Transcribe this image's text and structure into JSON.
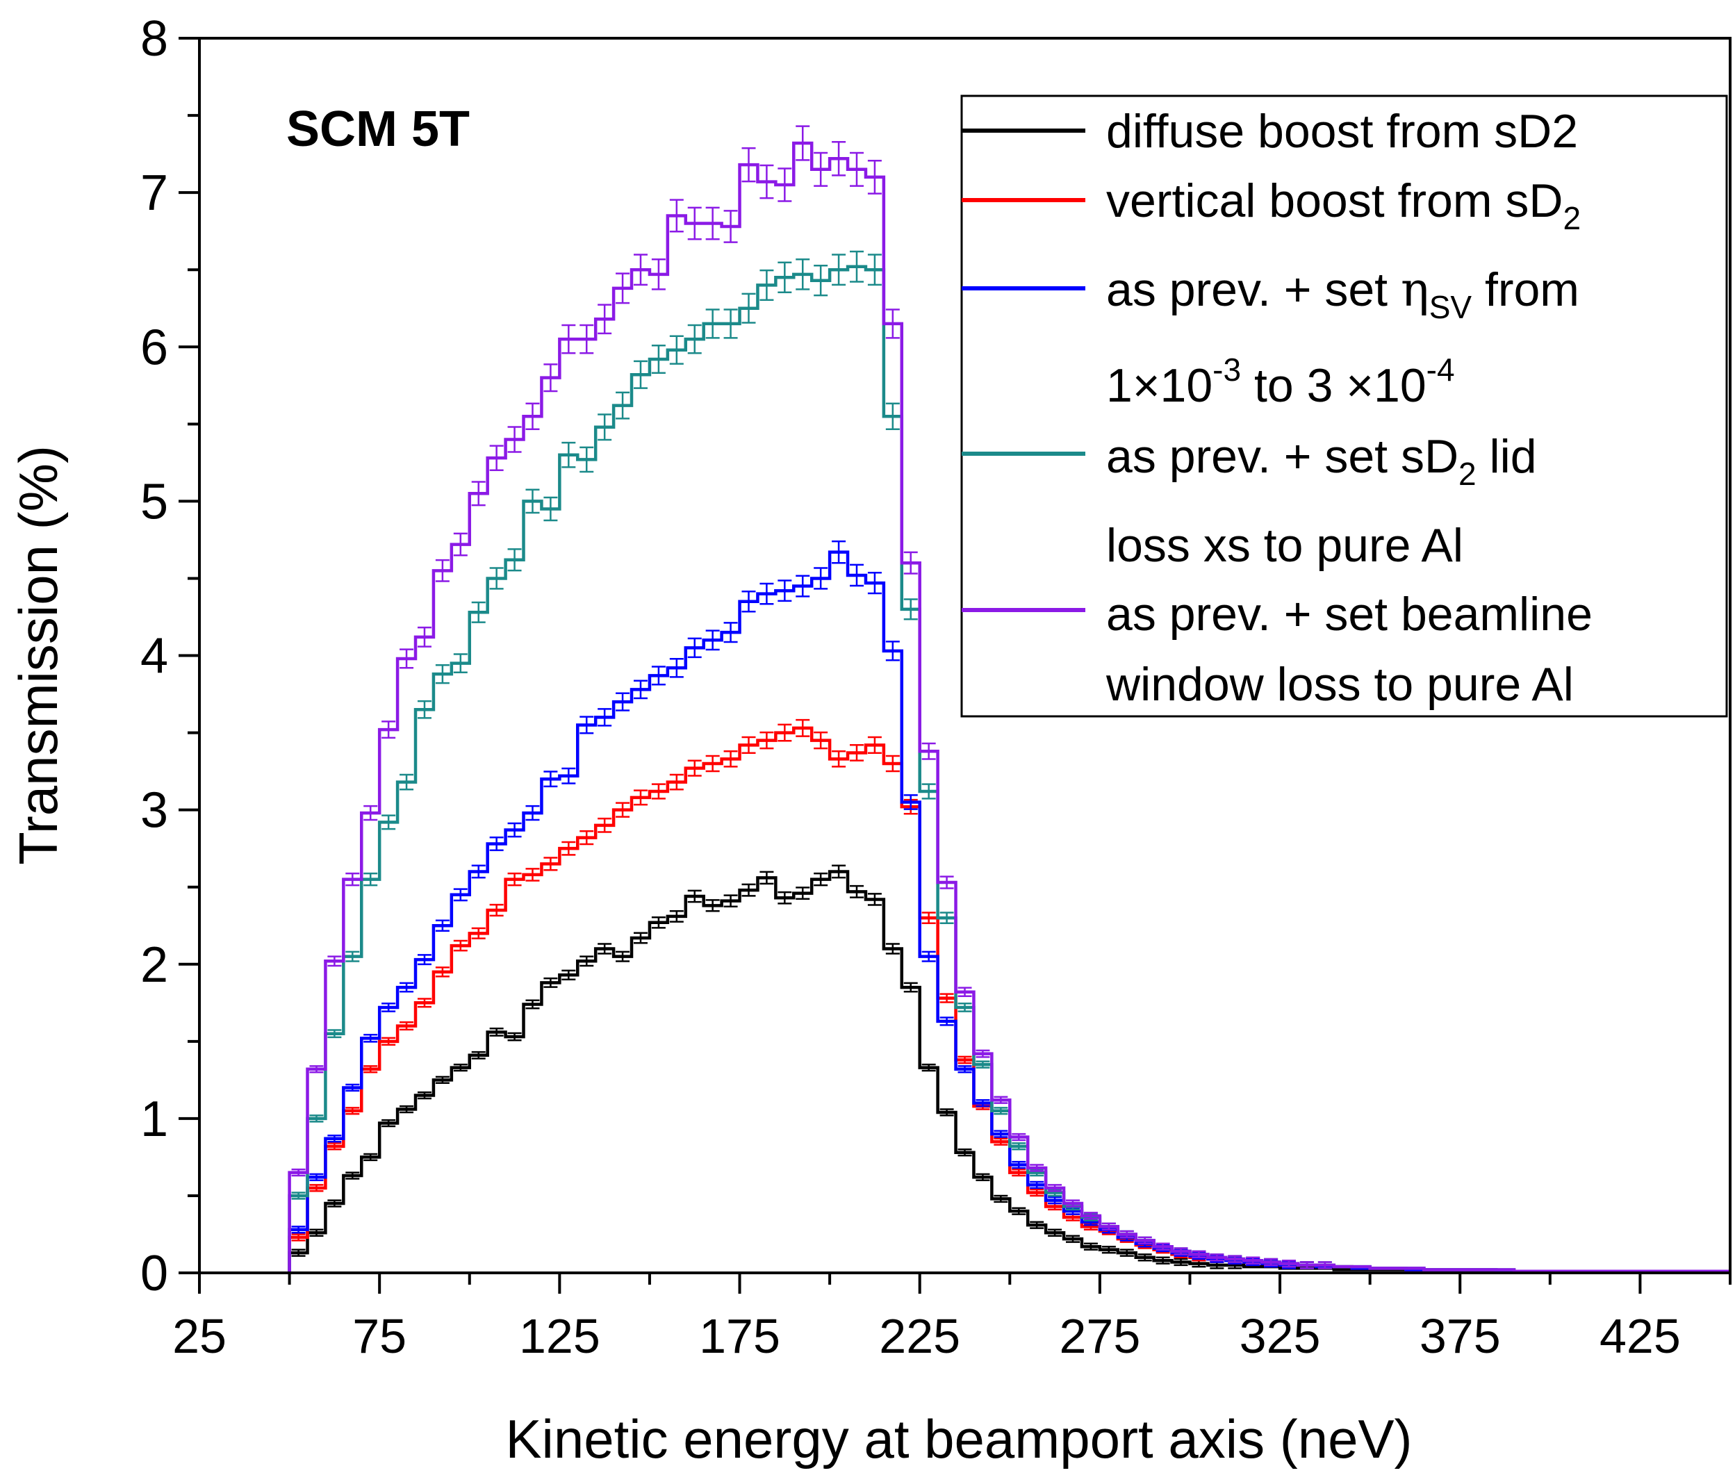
{
  "chart_data": {
    "type": "line",
    "style": "step-histogram-with-error-bars",
    "annotation": "SCM 5T",
    "xlabel": "Kinetic energy at beamport axis (neV)",
    "ylabel": "Transmission (%)",
    "xlim": [
      25,
      450
    ],
    "ylim": [
      0,
      8
    ],
    "x_ticks": [
      25,
      75,
      125,
      175,
      225,
      275,
      325,
      375,
      425
    ],
    "y_ticks": [
      0,
      1,
      2,
      3,
      4,
      5,
      6,
      7,
      8
    ],
    "bin_width": 5,
    "bin_centers": [
      52.5,
      57.5,
      62.5,
      67.5,
      72.5,
      77.5,
      82.5,
      87.5,
      92.5,
      97.5,
      102.5,
      107.5,
      112.5,
      117.5,
      122.5,
      127.5,
      132.5,
      137.5,
      142.5,
      147.5,
      152.5,
      157.5,
      162.5,
      167.5,
      172.5,
      177.5,
      182.5,
      187.5,
      192.5,
      197.5,
      202.5,
      207.5,
      212.5,
      217.5,
      222.5,
      227.5,
      232.5,
      237.5,
      242.5,
      247.5,
      252.5,
      257.5,
      262.5,
      267.5,
      272.5,
      277.5,
      282.5,
      287.5,
      292.5,
      297.5,
      302.5,
      307.5,
      312.5,
      317.5,
      322.5,
      327.5,
      332.5,
      337.5,
      342.5,
      347.5,
      352.5,
      357.5,
      362.5,
      367.5,
      372.5,
      377.5,
      382.5,
      387.5,
      392.5,
      397.5,
      402.5,
      407.5,
      412.5,
      417.5,
      422.5,
      427.5,
      432.5,
      437.5,
      442.5,
      447.5
    ],
    "series": [
      {
        "name": "diffuse boost from sD2",
        "color": "#000000",
        "values": [
          0.13,
          0.26,
          0.45,
          0.63,
          0.75,
          0.97,
          1.06,
          1.15,
          1.25,
          1.33,
          1.41,
          1.56,
          1.53,
          1.74,
          1.88,
          1.93,
          2.02,
          2.1,
          2.05,
          2.17,
          2.27,
          2.31,
          2.44,
          2.38,
          2.41,
          2.48,
          2.56,
          2.43,
          2.46,
          2.55,
          2.6,
          2.47,
          2.42,
          2.1,
          1.85,
          1.33,
          1.04,
          0.78,
          0.62,
          0.48,
          0.4,
          0.31,
          0.26,
          0.22,
          0.17,
          0.15,
          0.13,
          0.1,
          0.08,
          0.07,
          0.06,
          0.05,
          0.05,
          0.04,
          0.04,
          0.03,
          0.03,
          0.03,
          0.02,
          0.02,
          0.02,
          0.02,
          0.02,
          0.01,
          0.01,
          0.01,
          0.01,
          0.01,
          0.01,
          0.01,
          0.01,
          0.01,
          0.01,
          0.01,
          0.01,
          0.01,
          0.01,
          0.01,
          0.01,
          0.01
        ]
      },
      {
        "name": "vertical boost from sD2",
        "color": "#ff0000",
        "values": [
          0.23,
          0.55,
          0.82,
          1.05,
          1.32,
          1.5,
          1.6,
          1.75,
          1.95,
          2.12,
          2.2,
          2.35,
          2.55,
          2.58,
          2.65,
          2.75,
          2.82,
          2.9,
          3.0,
          3.08,
          3.12,
          3.18,
          3.27,
          3.3,
          3.33,
          3.42,
          3.45,
          3.5,
          3.53,
          3.45,
          3.33,
          3.37,
          3.42,
          3.3,
          3.02,
          2.3,
          1.78,
          1.38,
          1.08,
          0.85,
          0.65,
          0.52,
          0.43,
          0.36,
          0.3,
          0.27,
          0.22,
          0.18,
          0.15,
          0.12,
          0.1,
          0.09,
          0.08,
          0.07,
          0.06,
          0.05,
          0.05,
          0.04,
          0.04,
          0.03,
          0.03,
          0.03,
          0.02,
          0.02,
          0.02,
          0.02,
          0.02,
          0.01,
          0.01,
          0.01,
          0.01,
          0.01,
          0.01,
          0.01,
          0.01,
          0.01,
          0.01,
          0.01,
          0.01,
          0.01
        ]
      },
      {
        "name": "as prev. + set ηSV from 1×10-3 to 3 ×10-4",
        "color": "#0000ff",
        "values": [
          0.28,
          0.62,
          0.87,
          1.2,
          1.52,
          1.72,
          1.85,
          2.03,
          2.25,
          2.45,
          2.6,
          2.78,
          2.87,
          2.98,
          3.2,
          3.22,
          3.55,
          3.6,
          3.7,
          3.78,
          3.87,
          3.92,
          4.05,
          4.1,
          4.15,
          4.35,
          4.4,
          4.42,
          4.45,
          4.5,
          4.67,
          4.52,
          4.47,
          4.03,
          3.05,
          2.05,
          1.63,
          1.32,
          1.1,
          0.9,
          0.7,
          0.57,
          0.47,
          0.4,
          0.33,
          0.28,
          0.23,
          0.19,
          0.16,
          0.13,
          0.11,
          0.09,
          0.08,
          0.07,
          0.06,
          0.05,
          0.05,
          0.04,
          0.04,
          0.03,
          0.03,
          0.03,
          0.02,
          0.02,
          0.02,
          0.02,
          0.02,
          0.01,
          0.01,
          0.01,
          0.01,
          0.01,
          0.01,
          0.01,
          0.01,
          0.01,
          0.01,
          0.01,
          0.01,
          0.01
        ]
      },
      {
        "name": "as prev. + set sD2 lid loss xs to pure Al",
        "color": "#1b8a8a",
        "values": [
          0.5,
          1.0,
          1.55,
          2.05,
          2.55,
          2.92,
          3.18,
          3.65,
          3.88,
          3.95,
          4.28,
          4.5,
          4.62,
          5.0,
          4.95,
          5.3,
          5.27,
          5.48,
          5.62,
          5.82,
          5.92,
          5.98,
          6.05,
          6.15,
          6.15,
          6.25,
          6.4,
          6.45,
          6.47,
          6.43,
          6.5,
          6.52,
          6.5,
          5.55,
          4.3,
          3.12,
          2.3,
          1.72,
          1.35,
          1.05,
          0.82,
          0.65,
          0.52,
          0.43,
          0.36,
          0.3,
          0.25,
          0.21,
          0.17,
          0.14,
          0.12,
          0.1,
          0.09,
          0.08,
          0.07,
          0.06,
          0.05,
          0.05,
          0.04,
          0.04,
          0.03,
          0.03,
          0.03,
          0.02,
          0.02,
          0.02,
          0.02,
          0.02,
          0.01,
          0.01,
          0.01,
          0.01,
          0.01,
          0.01,
          0.01,
          0.01,
          0.01,
          0.01,
          0.01,
          0.01
        ]
      },
      {
        "name": "as prev. + set beamline window loss to pure Al",
        "color": "#8b1ae6",
        "values": [
          0.65,
          1.32,
          2.02,
          2.55,
          2.98,
          3.52,
          3.98,
          4.12,
          4.55,
          4.72,
          5.05,
          5.28,
          5.4,
          5.55,
          5.8,
          6.05,
          6.05,
          6.18,
          6.38,
          6.5,
          6.47,
          6.85,
          6.8,
          6.8,
          6.78,
          7.18,
          7.07,
          7.05,
          7.32,
          7.15,
          7.22,
          7.15,
          7.1,
          6.15,
          4.6,
          3.38,
          2.53,
          1.82,
          1.42,
          1.12,
          0.88,
          0.68,
          0.55,
          0.45,
          0.37,
          0.3,
          0.25,
          0.21,
          0.17,
          0.14,
          0.12,
          0.1,
          0.09,
          0.08,
          0.07,
          0.06,
          0.05,
          0.05,
          0.04,
          0.04,
          0.03,
          0.03,
          0.03,
          0.02,
          0.02,
          0.02,
          0.02,
          0.02,
          0.01,
          0.01,
          0.01,
          0.01,
          0.01,
          0.01,
          0.01,
          0.01,
          0.01,
          0.01,
          0.01,
          0.01
        ]
      }
    ],
    "error_bar_relative": 0.015,
    "legend": {
      "placement": "top-right",
      "entries": [
        {
          "lines": [
            "diffuse boost from sD2"
          ]
        },
        {
          "lines": [
            "vertical boost from sD",
            "2"
          ]
        },
        {
          "lines": [
            "as prev. + set ",
            "η",
            "SV",
            " from",
            "1×10",
            "-3",
            " to 3 ×10",
            "-4"
          ]
        },
        {
          "lines": [
            "as prev. + set sD",
            "2",
            " lid",
            "loss xs to pure Al"
          ]
        },
        {
          "lines": [
            "as prev. + set beamline",
            "window loss to pure Al"
          ]
        }
      ]
    }
  }
}
